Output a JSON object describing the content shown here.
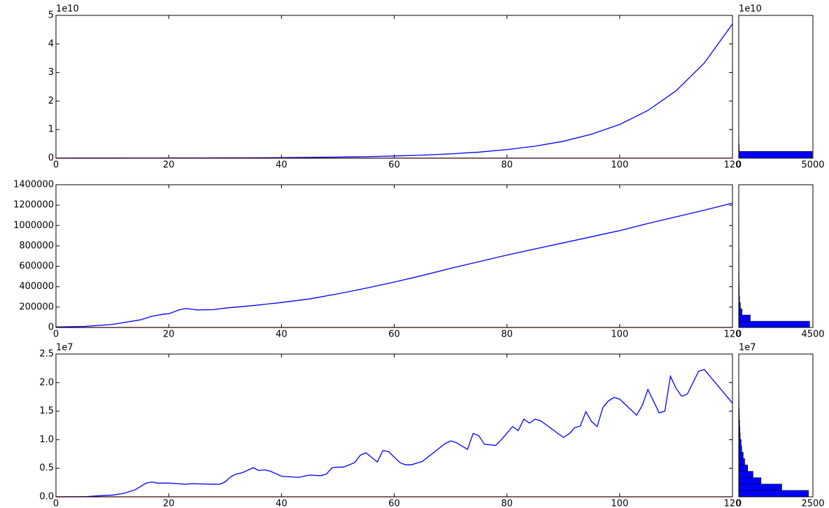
{
  "chart_data": [
    {
      "type": "line",
      "xlim": [
        0,
        120
      ],
      "xticks": [
        0,
        20,
        40,
        60,
        80,
        100,
        120
      ],
      "ylim": [
        0,
        5
      ],
      "yticks": [
        0,
        1,
        2,
        3,
        4,
        5
      ],
      "y_offset_label": "1e10",
      "series": [
        {
          "color": "#0000ff",
          "x": [
            0,
            5,
            10,
            15,
            20,
            25,
            30,
            35,
            40,
            45,
            50,
            55,
            60,
            65,
            70,
            75,
            80,
            85,
            90,
            95,
            100,
            105,
            110,
            115,
            120
          ],
          "values": [
            0,
            0.001,
            0.002,
            0.003,
            0.005,
            0.007,
            0.009,
            0.013,
            0.019,
            0.026,
            0.037,
            0.053,
            0.075,
            0.105,
            0.15,
            0.21,
            0.3,
            0.42,
            0.59,
            0.84,
            1.18,
            1.67,
            2.36,
            3.33,
            4.7
          ]
        },
        {
          "color": "#ff0000",
          "x": [
            0,
            120
          ],
          "values": [
            0,
            0
          ]
        }
      ]
    },
    {
      "type": "histogram",
      "orientation": "horizontal",
      "color": "#0000ff",
      "xlim": [
        0,
        5000
      ],
      "xticks": [
        0,
        5000
      ],
      "ylim": [
        0,
        5
      ],
      "y_offset_label": "1e10",
      "bins": [
        0,
        0.235,
        0.47,
        0.705,
        0.94,
        1.175,
        1.41,
        1.645,
        1.88,
        2.115,
        2.35,
        2.585,
        2.82,
        3.055,
        3.29,
        3.525,
        3.76,
        3.995,
        4.23,
        4.465,
        4.7
      ],
      "values": [
        4950,
        30,
        15,
        10,
        5,
        3,
        2,
        2,
        1,
        1,
        1,
        1,
        1,
        1,
        1,
        0,
        1,
        0,
        1,
        1
      ]
    },
    {
      "type": "line",
      "xlim": [
        0,
        120
      ],
      "xticks": [
        0,
        20,
        40,
        60,
        80,
        100,
        120
      ],
      "ylim": [
        0,
        1400000
      ],
      "yticks": [
        0,
        200000,
        400000,
        600000,
        800000,
        1000000,
        1200000,
        1400000
      ],
      "series": [
        {
          "color": "#0000ff",
          "x": [
            0,
            5,
            10,
            15,
            17,
            19,
            20,
            22,
            23,
            24,
            25,
            28,
            30,
            35,
            40,
            45,
            50,
            55,
            60,
            65,
            70,
            75,
            80,
            85,
            90,
            95,
            100,
            105,
            110,
            115,
            120
          ],
          "values": [
            5000,
            10000,
            30000,
            75000,
            110000,
            130000,
            135000,
            175000,
            185000,
            180000,
            172000,
            175000,
            190000,
            215000,
            245000,
            280000,
            330000,
            385000,
            445000,
            510000,
            580000,
            645000,
            710000,
            770000,
            830000,
            890000,
            950000,
            1020000,
            1085000,
            1150000,
            1220000
          ]
        },
        {
          "color": "#ff0000",
          "x": [
            0,
            120
          ],
          "values": [
            0,
            0
          ]
        }
      ]
    },
    {
      "type": "histogram",
      "orientation": "horizontal",
      "color": "#0000ff",
      "xlim": [
        0,
        4500
      ],
      "xticks": [
        0,
        4500
      ],
      "ylim": [
        0,
        1400000
      ],
      "bins": [
        0,
        61000,
        122000,
        183000,
        244000,
        305000,
        366000,
        427000,
        488000,
        549000,
        610000,
        671000,
        732000,
        793000,
        854000,
        915000,
        976000,
        1037000,
        1098000,
        1159000,
        1220000
      ],
      "values": [
        4300,
        700,
        200,
        100,
        50,
        30,
        25,
        20,
        20,
        15,
        15,
        15,
        12,
        12,
        10,
        10,
        10,
        10,
        8,
        8
      ]
    },
    {
      "type": "line",
      "xlim": [
        0,
        120
      ],
      "xticks": [
        0,
        20,
        40,
        60,
        80,
        100,
        120
      ],
      "ylim": [
        0,
        2.5
      ],
      "yticks": [
        {
          "value": 0,
          "label": "0.0"
        },
        0.5,
        {
          "value": 1,
          "label": "1.0"
        },
        1.5,
        {
          "value": 2,
          "label": "2.0"
        },
        2.5
      ],
      "y_offset_label": "1e7",
      "series": [
        {
          "color": "#0000ff",
          "x": [
            0,
            5,
            10,
            12,
            14,
            16,
            17,
            18,
            20,
            23,
            24,
            28,
            29,
            30,
            31,
            32,
            33,
            35,
            36,
            37,
            38,
            40,
            43,
            45,
            47,
            48,
            49,
            50,
            51,
            53,
            54,
            55,
            57,
            58,
            59,
            61,
            62,
            63,
            65,
            69,
            70,
            71,
            73,
            74,
            75,
            76,
            78,
            79,
            81,
            82,
            83,
            84,
            85,
            86,
            90,
            91,
            92,
            93,
            94,
            95,
            96,
            97,
            98,
            99,
            100,
            103,
            104,
            105,
            107,
            108,
            109,
            110,
            111,
            112,
            114,
            115,
            120
          ],
          "values": [
            0,
            0.002,
            0.03,
            0.06,
            0.12,
            0.24,
            0.26,
            0.24,
            0.24,
            0.22,
            0.23,
            0.22,
            0.22,
            0.26,
            0.35,
            0.4,
            0.42,
            0.51,
            0.46,
            0.47,
            0.45,
            0.36,
            0.34,
            0.38,
            0.37,
            0.4,
            0.51,
            0.52,
            0.52,
            0.6,
            0.73,
            0.77,
            0.61,
            0.81,
            0.79,
            0.6,
            0.56,
            0.56,
            0.62,
            0.93,
            0.98,
            0.95,
            0.83,
            1.11,
            1.07,
            0.92,
            0.9,
            1.0,
            1.23,
            1.16,
            1.36,
            1.29,
            1.36,
            1.33,
            1.04,
            1.1,
            1.21,
            1.24,
            1.49,
            1.32,
            1.23,
            1.56,
            1.68,
            1.74,
            1.71,
            1.43,
            1.6,
            1.88,
            1.47,
            1.5,
            2.11,
            1.9,
            1.76,
            1.8,
            2.2,
            2.23,
            1.64
          ]
        },
        {
          "color": "#ff0000",
          "x": [
            0,
            120
          ],
          "values": [
            0,
            0
          ]
        }
      ]
    },
    {
      "type": "histogram",
      "orientation": "horizontal",
      "color": "#0000ff",
      "xlim": [
        0,
        2500
      ],
      "xticks": [
        0,
        2500
      ],
      "ylim": [
        0,
        2.5
      ],
      "y_offset_label": "1e7",
      "bins": [
        0,
        0.1115,
        0.223,
        0.3345,
        0.446,
        0.5575,
        0.669,
        0.7805,
        0.892,
        1.0035,
        1.115,
        1.2265,
        1.338,
        1.4495,
        1.561,
        1.6725,
        1.784,
        1.8955,
        2.007,
        2.1185,
        2.23
      ],
      "values": [
        2350,
        1450,
        750,
        480,
        300,
        200,
        150,
        100,
        80,
        50,
        40,
        30,
        20,
        15,
        10,
        8,
        6,
        5,
        3,
        2
      ]
    }
  ]
}
